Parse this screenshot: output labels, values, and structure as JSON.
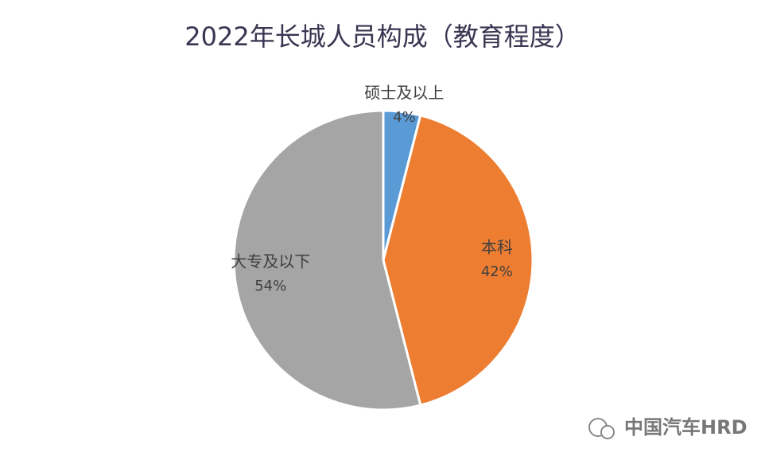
{
  "chart_data": {
    "type": "pie",
    "title": "2022年长城人员构成（教育程度）",
    "categories": [
      "硕士及以上",
      "本科",
      "大专及以下"
    ],
    "values": [
      4,
      42,
      54
    ],
    "value_labels": [
      "4%",
      "42%",
      "54%"
    ],
    "colors": [
      "#5b9bd5",
      "#ed7d31",
      "#a5a5a5"
    ]
  },
  "watermark": "中国汽车HRD"
}
